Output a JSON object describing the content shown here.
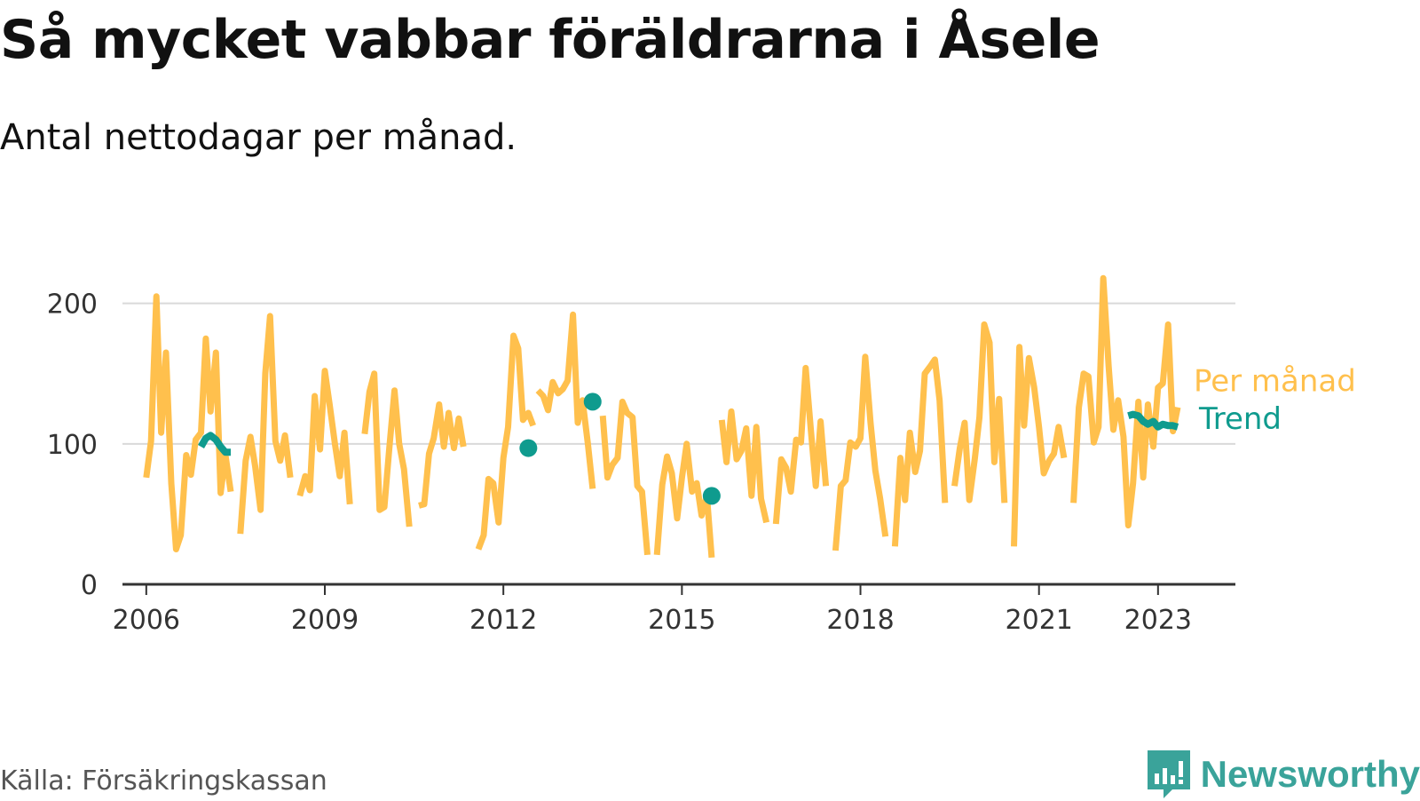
{
  "title": "Så mycket vabbar föräldrarna i Åsele",
  "subtitle": "Antal nettodagar per månad.",
  "source": "Källa: Försäkringskassan",
  "brand": {
    "name": "Newsworthy",
    "icon": "newsworthy-logo-icon",
    "color": "#3aa39a"
  },
  "chart_data": {
    "type": "line",
    "title": "Så mycket vabbar föräldrarna i Åsele",
    "subtitle": "Antal nettodagar per månad.",
    "xlabel": "",
    "ylabel": "",
    "xlim": [
      2005.6,
      2024.3
    ],
    "ylim": [
      0,
      220
    ],
    "x_ticks": [
      2006,
      2009,
      2012,
      2015,
      2018,
      2021,
      2023
    ],
    "y_ticks": [
      0,
      100,
      200
    ],
    "grid": true,
    "legend": "direct labels at right end of lines",
    "series": [
      {
        "name": "Per månad",
        "color": "#ffc04d",
        "segments": [
          [
            [
              2006.0,
              76
            ],
            [
              2006.08,
              102
            ],
            [
              2006.17,
              205
            ],
            [
              2006.25,
              108
            ],
            [
              2006.33,
              165
            ],
            [
              2006.42,
              72
            ],
            [
              2006.5,
              25
            ],
            [
              2006.58,
              35
            ],
            [
              2006.67,
              92
            ],
            [
              2006.75,
              78
            ],
            [
              2006.83,
              103
            ],
            [
              2006.92,
              108
            ],
            [
              2007.0,
              175
            ],
            [
              2007.08,
              123
            ],
            [
              2007.17,
              165
            ],
            [
              2007.25,
              65
            ],
            [
              2007.33,
              92
            ],
            [
              2007.42,
              66
            ]
          ],
          [
            [
              2007.58,
              36
            ],
            [
              2007.67,
              88
            ],
            [
              2007.75,
              105
            ],
            [
              2007.83,
              84
            ],
            [
              2007.92,
              53
            ],
            [
              2008.0,
              150
            ],
            [
              2008.08,
              191
            ],
            [
              2008.17,
              102
            ],
            [
              2008.25,
              88
            ],
            [
              2008.33,
              106
            ],
            [
              2008.42,
              76
            ]
          ],
          [
            [
              2008.58,
              63
            ],
            [
              2008.67,
              77
            ],
            [
              2008.75,
              67
            ],
            [
              2008.83,
              134
            ],
            [
              2008.92,
              96
            ],
            [
              2009.0,
              152
            ],
            [
              2009.08,
              128
            ],
            [
              2009.17,
              100
            ],
            [
              2009.25,
              77
            ],
            [
              2009.33,
              108
            ],
            [
              2009.42,
              57
            ]
          ],
          [
            [
              2009.67,
              107
            ],
            [
              2009.75,
              137
            ],
            [
              2009.83,
              150
            ],
            [
              2009.92,
              53
            ],
            [
              2010.0,
              55
            ],
            [
              2010.08,
              95
            ],
            [
              2010.17,
              138
            ],
            [
              2010.25,
              100
            ],
            [
              2010.33,
              82
            ],
            [
              2010.42,
              41
            ]
          ],
          [
            [
              2010.58,
              56
            ],
            [
              2010.67,
              57
            ],
            [
              2010.75,
              93
            ],
            [
              2010.83,
              104
            ],
            [
              2010.92,
              128
            ],
            [
              2011.0,
              98
            ],
            [
              2011.08,
              122
            ],
            [
              2011.17,
              97
            ],
            [
              2011.25,
              118
            ],
            [
              2011.33,
              98
            ]
          ],
          [
            [
              2011.58,
              25
            ],
            [
              2011.67,
              35
            ],
            [
              2011.75,
              75
            ],
            [
              2011.83,
              72
            ],
            [
              2011.92,
              44
            ],
            [
              2012.0,
              90
            ],
            [
              2012.08,
              112
            ],
            [
              2012.17,
              177
            ],
            [
              2012.25,
              168
            ],
            [
              2012.33,
              117
            ],
            [
              2012.42,
              122
            ],
            [
              2012.5,
              113
            ]
          ],
          [
            [
              2012.58,
              138
            ],
            [
              2012.67,
              134
            ],
            [
              2012.75,
              124
            ],
            [
              2012.83,
              144
            ],
            [
              2012.92,
              136
            ],
            [
              2013.0,
              139
            ],
            [
              2013.08,
              145
            ],
            [
              2013.17,
              192
            ],
            [
              2013.25,
              115
            ],
            [
              2013.33,
              131
            ],
            [
              2013.42,
              100
            ],
            [
              2013.5,
              68
            ]
          ],
          [
            [
              2013.67,
              120
            ],
            [
              2013.75,
              76
            ],
            [
              2013.83,
              85
            ],
            [
              2013.92,
              90
            ],
            [
              2014.0,
              130
            ],
            [
              2014.08,
              122
            ],
            [
              2014.17,
              119
            ],
            [
              2014.25,
              70
            ],
            [
              2014.33,
              66
            ],
            [
              2014.42,
              21
            ]
          ],
          [
            [
              2014.58,
              21
            ],
            [
              2014.67,
              71
            ],
            [
              2014.75,
              91
            ],
            [
              2014.83,
              79
            ],
            [
              2014.92,
              47
            ],
            [
              2015.0,
              76
            ],
            [
              2015.08,
              100
            ],
            [
              2015.17,
              66
            ],
            [
              2015.25,
              72
            ],
            [
              2015.33,
              49
            ],
            [
              2015.42,
              63
            ],
            [
              2015.5,
              19
            ]
          ],
          [
            [
              2015.67,
              117
            ],
            [
              2015.75,
              87
            ],
            [
              2015.83,
              123
            ],
            [
              2015.92,
              89
            ],
            [
              2016.0,
              95
            ],
            [
              2016.08,
              111
            ],
            [
              2016.17,
              63
            ],
            [
              2016.25,
              112
            ],
            [
              2016.33,
              61
            ],
            [
              2016.42,
              44
            ]
          ],
          [
            [
              2016.58,
              43
            ],
            [
              2016.67,
              89
            ],
            [
              2016.75,
              83
            ],
            [
              2016.83,
              66
            ],
            [
              2016.92,
              103
            ],
            [
              2017.0,
              101
            ],
            [
              2017.08,
              154
            ],
            [
              2017.17,
              108
            ],
            [
              2017.25,
              70
            ],
            [
              2017.33,
              116
            ],
            [
              2017.42,
              70
            ]
          ],
          [
            [
              2017.58,
              24
            ],
            [
              2017.67,
              70
            ],
            [
              2017.75,
              74
            ],
            [
              2017.83,
              101
            ],
            [
              2017.92,
              98
            ],
            [
              2018.0,
              104
            ],
            [
              2018.08,
              162
            ],
            [
              2018.17,
              115
            ],
            [
              2018.25,
              81
            ],
            [
              2018.33,
              61
            ],
            [
              2018.42,
              34
            ]
          ],
          [
            [
              2018.58,
              27
            ],
            [
              2018.67,
              90
            ],
            [
              2018.75,
              60
            ],
            [
              2018.83,
              108
            ],
            [
              2018.92,
              80
            ],
            [
              2019.0,
              95
            ],
            [
              2019.08,
              150
            ],
            [
              2019.17,
              155
            ],
            [
              2019.25,
              160
            ],
            [
              2019.33,
              131
            ],
            [
              2019.42,
              58
            ]
          ],
          [
            [
              2019.58,
              70
            ],
            [
              2019.67,
              97
            ],
            [
              2019.75,
              115
            ],
            [
              2019.83,
              60
            ],
            [
              2019.92,
              89
            ],
            [
              2020.0,
              119
            ],
            [
              2020.08,
              185
            ],
            [
              2020.17,
              172
            ],
            [
              2020.25,
              87
            ],
            [
              2020.33,
              132
            ],
            [
              2020.42,
              58
            ]
          ],
          [
            [
              2020.58,
              27
            ],
            [
              2020.67,
              169
            ],
            [
              2020.75,
              113
            ],
            [
              2020.83,
              161
            ],
            [
              2020.92,
              140
            ],
            [
              2021.0,
              112
            ],
            [
              2021.08,
              79
            ],
            [
              2021.17,
              88
            ],
            [
              2021.25,
              93
            ],
            [
              2021.33,
              112
            ],
            [
              2021.42,
              90
            ]
          ],
          [
            [
              2021.58,
              58
            ],
            [
              2021.67,
              126
            ],
            [
              2021.75,
              150
            ],
            [
              2021.83,
              148
            ],
            [
              2021.92,
              101
            ],
            [
              2022.0,
              112
            ],
            [
              2022.08,
              218
            ],
            [
              2022.17,
              155
            ],
            [
              2022.25,
              110
            ],
            [
              2022.33,
              131
            ],
            [
              2022.42,
              105
            ],
            [
              2022.5,
              42
            ],
            [
              2022.58,
              72
            ],
            [
              2022.67,
              130
            ],
            [
              2022.75,
              76
            ],
            [
              2022.83,
              128
            ],
            [
              2022.92,
              98
            ],
            [
              2023.0,
              140
            ],
            [
              2023.08,
              143
            ],
            [
              2023.17,
              185
            ],
            [
              2023.25,
              109
            ],
            [
              2023.33,
              126
            ]
          ]
        ]
      },
      {
        "name": "Trend",
        "color": "#0f9b8e",
        "segments": [
          [
            [
              2006.92,
              98
            ],
            [
              2007.0,
              104
            ],
            [
              2007.08,
              106
            ],
            [
              2007.17,
              103
            ],
            [
              2007.25,
              98
            ],
            [
              2007.33,
              94
            ],
            [
              2007.42,
              94
            ]
          ],
          [
            [
              2022.5,
              120
            ],
            [
              2022.58,
              121
            ],
            [
              2022.67,
              120
            ],
            [
              2022.75,
              116
            ],
            [
              2022.83,
              114
            ],
            [
              2022.92,
              116
            ],
            [
              2023.0,
              112
            ],
            [
              2023.08,
              114
            ],
            [
              2023.17,
              113
            ],
            [
              2023.25,
              113
            ],
            [
              2023.33,
              112
            ]
          ]
        ],
        "points": [
          [
            2012.42,
            97
          ],
          [
            2013.5,
            130
          ],
          [
            2015.5,
            63
          ]
        ]
      }
    ]
  }
}
